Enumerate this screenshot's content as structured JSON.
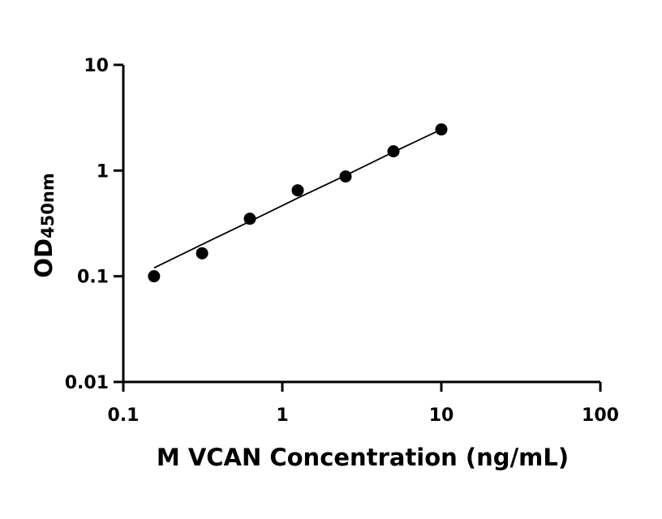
{
  "chart_data": {
    "type": "scatter",
    "title": "",
    "xlabel": "M VCAN Concentration (ng/mL)",
    "ylabel_main": "OD",
    "ylabel_sub": "450nm",
    "x_scale": "log",
    "y_scale": "log",
    "xlim": [
      0.1,
      100
    ],
    "ylim": [
      0.01,
      10
    ],
    "x_ticks": [
      0.1,
      1,
      10,
      100
    ],
    "x_tick_labels": [
      "0.1",
      "1",
      "10",
      "100"
    ],
    "y_ticks": [
      0.01,
      0.1,
      1,
      10
    ],
    "y_tick_labels": [
      "0.01",
      "0.1",
      "1",
      "10"
    ],
    "grid": false,
    "points": [
      {
        "x": 0.156,
        "y": 0.1
      },
      {
        "x": 0.313,
        "y": 0.165
      },
      {
        "x": 0.625,
        "y": 0.35
      },
      {
        "x": 1.25,
        "y": 0.65
      },
      {
        "x": 2.5,
        "y": 0.88
      },
      {
        "x": 5,
        "y": 1.52
      },
      {
        "x": 10,
        "y": 2.45
      }
    ],
    "fit_line": [
      {
        "x": 0.156,
        "y": 0.12
      },
      {
        "x": 0.313,
        "y": 0.2
      },
      {
        "x": 0.625,
        "y": 0.33
      },
      {
        "x": 1.25,
        "y": 0.55
      },
      {
        "x": 2.5,
        "y": 0.9
      },
      {
        "x": 5,
        "y": 1.5
      },
      {
        "x": 10,
        "y": 2.45
      }
    ]
  }
}
